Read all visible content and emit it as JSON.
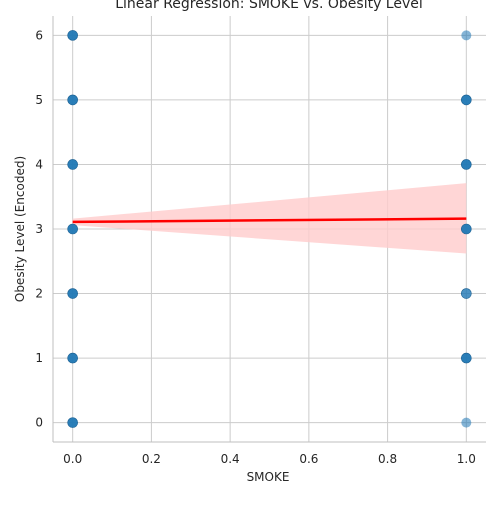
{
  "chart_data": {
    "type": "scatter",
    "title": "Linear Regression: SMOKE vs. Obesity Level",
    "xlabel": "SMOKE",
    "ylabel": "Obesity Level (Encoded)",
    "xlim": [
      -0.05,
      1.05
    ],
    "ylim": [
      -0.3,
      6.3
    ],
    "xticks": [
      0.0,
      0.2,
      0.4,
      0.6,
      0.8,
      1.0
    ],
    "xtick_labels": [
      "0.0",
      "0.2",
      "0.4",
      "0.6",
      "0.8",
      "1.0"
    ],
    "yticks": [
      0,
      1,
      2,
      3,
      4,
      5,
      6
    ],
    "ytick_labels": [
      "0",
      "1",
      "2",
      "3",
      "4",
      "5",
      "6"
    ],
    "grid": true,
    "points": {
      "color": "#1f77b4",
      "data": [
        {
          "x": 0,
          "y": 0,
          "density": "high"
        },
        {
          "x": 0,
          "y": 1,
          "density": "high"
        },
        {
          "x": 0,
          "y": 2,
          "density": "high"
        },
        {
          "x": 0,
          "y": 3,
          "density": "high"
        },
        {
          "x": 0,
          "y": 4,
          "density": "high"
        },
        {
          "x": 0,
          "y": 5,
          "density": "high"
        },
        {
          "x": 0,
          "y": 6,
          "density": "high"
        },
        {
          "x": 1,
          "y": 0,
          "density": "low"
        },
        {
          "x": 1,
          "y": 1,
          "density": "high"
        },
        {
          "x": 1,
          "y": 2,
          "density": "medium"
        },
        {
          "x": 1,
          "y": 3,
          "density": "high"
        },
        {
          "x": 1,
          "y": 4,
          "density": "high"
        },
        {
          "x": 1,
          "y": 5,
          "density": "high"
        },
        {
          "x": 1,
          "y": 6,
          "density": "low"
        }
      ]
    },
    "regression": {
      "color": "#ff0000",
      "band_color": "#ffcccc",
      "x": [
        0,
        1
      ],
      "y": [
        3.11,
        3.16
      ],
      "ci_upper": [
        3.16,
        3.71
      ],
      "ci_lower": [
        3.06,
        2.62
      ]
    }
  }
}
